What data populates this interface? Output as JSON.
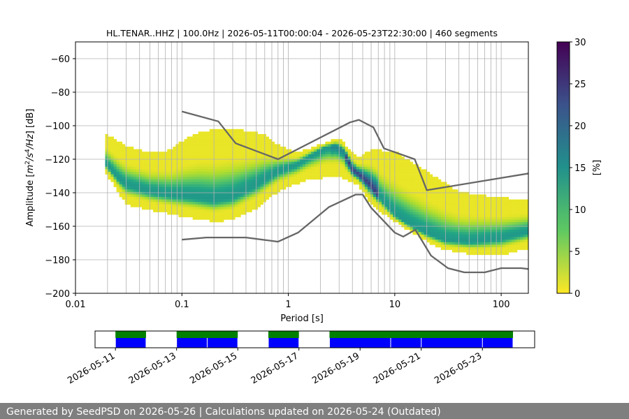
{
  "chart_data": [
    {
      "type": "heatmap",
      "title": "HL.TENAR..HHZ | 100.0Hz | 2026-05-11T00:00:04 - 2026-05-23T22:30:00 | 460 segments",
      "xlabel": "Period [s]",
      "ylabel_parts": [
        "Amplitude [",
        "m",
        "2",
        "/",
        "s",
        "4",
        "/",
        "Hz",
        "] [dB]"
      ],
      "x_scale": "log",
      "xlim": [
        0.01,
        180
      ],
      "ylim": [
        -200,
        -50
      ],
      "x_ticks": [
        {
          "value": 0.01,
          "label": "0.01"
        },
        {
          "value": 0.1,
          "label": "0.1"
        },
        {
          "value": 1,
          "label": "1"
        },
        {
          "value": 10,
          "label": "10"
        },
        {
          "value": 100,
          "label": "100"
        }
      ],
      "y_ticks": [
        {
          "value": -60,
          "label": "−60"
        },
        {
          "value": -80,
          "label": "−80"
        },
        {
          "value": -100,
          "label": "−100"
        },
        {
          "value": -120,
          "label": "−120"
        },
        {
          "value": -140,
          "label": "−140"
        },
        {
          "value": -160,
          "label": "−160"
        },
        {
          "value": -180,
          "label": "−180"
        },
        {
          "value": -200,
          "label": "−200"
        }
      ],
      "grid": true,
      "colorbar": {
        "label": "[%]",
        "range": [
          0,
          30
        ],
        "ticks": [
          {
            "value": 0,
            "label": "0"
          },
          {
            "value": 5,
            "label": "5"
          },
          {
            "value": 10,
            "label": "10"
          },
          {
            "value": 15,
            "label": "15"
          },
          {
            "value": 20,
            "label": "20"
          },
          {
            "value": 25,
            "label": "25"
          },
          {
            "value": 30,
            "label": "30"
          }
        ]
      },
      "mode_curve": [
        [
          0.019,
          -123
        ],
        [
          0.025,
          -132
        ],
        [
          0.03,
          -136
        ],
        [
          0.05,
          -140
        ],
        [
          0.08,
          -142
        ],
        [
          0.12,
          -143
        ],
        [
          0.2,
          -145
        ],
        [
          0.3,
          -143
        ],
        [
          0.5,
          -136
        ],
        [
          0.8,
          -128
        ],
        [
          1.2,
          -124
        ],
        [
          1.6,
          -119
        ],
        [
          2.2,
          -114
        ],
        [
          2.8,
          -113
        ],
        [
          3.3,
          -116
        ],
        [
          4.0,
          -127
        ],
        [
          5.0,
          -132
        ],
        [
          6.0,
          -137
        ],
        [
          8.0,
          -147
        ],
        [
          10.0,
          -154
        ],
        [
          14.0,
          -160
        ],
        [
          20.0,
          -165
        ],
        [
          30.0,
          -169
        ],
        [
          50.0,
          -170
        ],
        [
          100.0,
          -168
        ],
        [
          180.0,
          -164
        ]
      ],
      "upper_bound": [
        [
          0.019,
          -105
        ],
        [
          0.03,
          -113
        ],
        [
          0.05,
          -117
        ],
        [
          0.08,
          -115
        ],
        [
          0.1,
          -110
        ],
        [
          0.15,
          -104
        ],
        [
          0.3,
          -102
        ],
        [
          0.6,
          -106
        ],
        [
          0.8,
          -112
        ],
        [
          1.2,
          -117
        ],
        [
          2.0,
          -112
        ],
        [
          3.0,
          -108
        ],
        [
          4.5,
          -120
        ],
        [
          6.0,
          -115
        ],
        [
          10.0,
          -116
        ],
        [
          20.0,
          -128
        ],
        [
          40.0,
          -140
        ],
        [
          80.0,
          -143
        ],
        [
          180.0,
          -145
        ]
      ],
      "lower_bound": [
        [
          0.019,
          -128
        ],
        [
          0.03,
          -148
        ],
        [
          0.06,
          -152
        ],
        [
          0.1,
          -155
        ],
        [
          0.2,
          -158
        ],
        [
          0.3,
          -157
        ],
        [
          0.5,
          -150
        ],
        [
          0.8,
          -140
        ],
        [
          1.5,
          -133
        ],
        [
          3.0,
          -131
        ],
        [
          4.5,
          -136
        ],
        [
          6.0,
          -148
        ],
        [
          10.0,
          -158
        ],
        [
          20.0,
          -170
        ],
        [
          30.0,
          -175
        ],
        [
          60.0,
          -178
        ],
        [
          100.0,
          -178
        ],
        [
          180.0,
          -174
        ]
      ],
      "nlnm": [
        [
          0.1,
          -168
        ],
        [
          0.17,
          -166.7
        ],
        [
          0.4,
          -166.7
        ],
        [
          0.8,
          -169.2
        ],
        [
          1.24,
          -163.7
        ],
        [
          2.4,
          -148.6
        ],
        [
          4.3,
          -141.1
        ],
        [
          5.0,
          -141.1
        ],
        [
          6.0,
          -149
        ],
        [
          10.0,
          -163.8
        ],
        [
          12.0,
          -166.2
        ],
        [
          15.6,
          -162.1
        ],
        [
          21.9,
          -177.5
        ],
        [
          31.6,
          -185
        ],
        [
          45.0,
          -187.5
        ],
        [
          70.0,
          -187.5
        ],
        [
          100.0,
          -185
        ],
        [
          154.0,
          -185
        ],
        [
          180.0,
          -185.5
        ]
      ],
      "nhnm": [
        [
          0.1,
          -91.5
        ],
        [
          0.22,
          -97.4
        ],
        [
          0.32,
          -110.5
        ],
        [
          0.8,
          -120
        ],
        [
          3.8,
          -98
        ],
        [
          4.6,
          -96.5
        ],
        [
          6.3,
          -101
        ],
        [
          7.9,
          -113.5
        ],
        [
          15.4,
          -120
        ],
        [
          20.0,
          -138.5
        ],
        [
          180.0,
          -128.5
        ]
      ]
    },
    {
      "type": "timeline",
      "x_ticks": [
        "2026-05-11",
        "2026-05-13",
        "2026-05-15",
        "2026-05-17",
        "2026-05-19",
        "2026-05-21",
        "2026-05-23"
      ],
      "xlim": [
        "2026-05-10T08:00",
        "2026-05-24T17:00"
      ],
      "availability_green": [
        [
          "2026-05-11T00:00",
          "2026-05-12T00:00"
        ],
        [
          "2026-05-13T00:00",
          "2026-05-15T00:00"
        ],
        [
          "2026-05-16T00:00",
          "2026-05-17T00:00"
        ],
        [
          "2026-05-18T00:00",
          "2026-05-24T00:00"
        ]
      ],
      "availability_blue": [
        [
          "2026-05-11T00:00",
          "2026-05-12T00:00"
        ],
        [
          "2026-05-13T00:00",
          "2026-05-14T00:00"
        ],
        [
          "2026-05-14T00:00",
          "2026-05-15T00:00"
        ],
        [
          "2026-05-16T00:00",
          "2026-05-17T00:00"
        ],
        [
          "2026-05-18T00:00",
          "2026-05-20T00:00"
        ],
        [
          "2026-05-20T00:00",
          "2026-05-21T00:00"
        ],
        [
          "2026-05-21T00:00",
          "2026-05-23T00:00"
        ],
        [
          "2026-05-23T00:00",
          "2026-05-24T00:00"
        ]
      ]
    }
  ],
  "footer": "Generated by SeedPSD on 2026-05-26 | Calculations updated on 2026-05-24 (Outdated)"
}
